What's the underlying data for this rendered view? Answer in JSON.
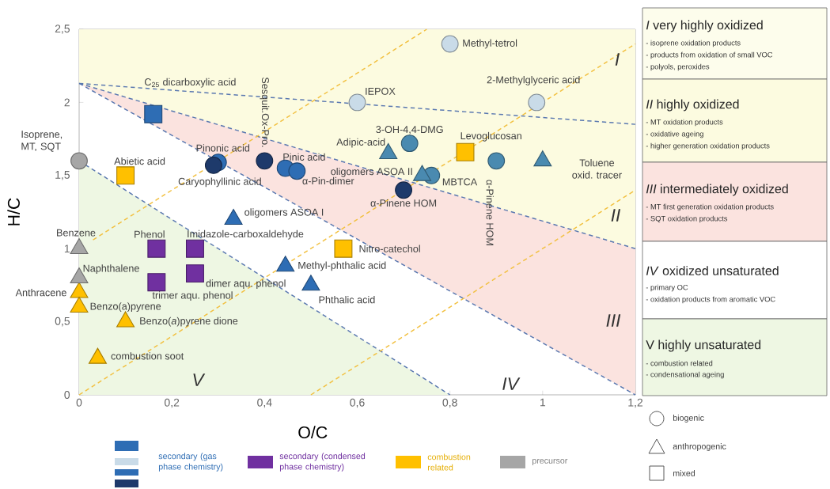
{
  "chart_data": [
    {
      "type": "scatter",
      "xlabel": "O/C",
      "ylabel": "H/C",
      "xlim": [
        0,
        1.2
      ],
      "ylim": [
        0,
        2.5
      ],
      "xticks": [
        0,
        {
          "value": 0.2,
          "label": "0,2"
        },
        {
          "value": 0.4,
          "label": "0,4"
        },
        {
          "value": 0.6,
          "label": "0,6"
        },
        {
          "value": 0.8,
          "label": "0,8"
        },
        1,
        {
          "value": 1.2,
          "label": "1,2"
        }
      ],
      "yticks": [
        0,
        {
          "value": 0.5,
          "label": "0,5"
        },
        1,
        {
          "value": 1.5,
          "label": "1,5"
        },
        2,
        {
          "value": 2.5,
          "label": "2,5"
        }
      ],
      "series": [
        {
          "type": "line",
          "line_style": "dashed",
          "color": "#5a78b0",
          "x": [
            0,
            1.2
          ],
          "values": [
            2.13,
            1.85
          ]
        },
        {
          "type": "line",
          "line_style": "dashed",
          "color": "#5a78b0",
          "x": [
            0,
            1.2
          ],
          "values": [
            2.13,
            1.0
          ]
        },
        {
          "type": "line",
          "line_style": "dashed",
          "color": "#5a78b0",
          "x": [
            0,
            1.2
          ],
          "values": [
            2.13,
            0
          ]
        },
        {
          "type": "line",
          "line_style": "dashed",
          "color": "#5a78b0",
          "x": [
            0,
            0.8
          ],
          "values": [
            1.6,
            0
          ]
        },
        {
          "type": "line",
          "line_style": "dashed",
          "color": "#f2c040",
          "x": [
            0,
            1.2
          ],
          "values": [
            0,
            2.4
          ]
        },
        {
          "type": "line",
          "line_style": "dashed",
          "color": "#f2c040",
          "x": [
            0.03,
            0.75
          ],
          "values": [
            1.06,
            2.5
          ]
        },
        {
          "type": "line",
          "line_style": "dashed",
          "color": "#f2c040",
          "x": [
            0.5,
            1.2
          ],
          "values": [
            0,
            1.4
          ]
        },
        {
          "type": "scatter",
          "marker": "circle",
          "color": "#c9dbe8",
          "x": [
            0.6,
            0.8,
            0.987
          ],
          "values": [
            2.0,
            2.4,
            2.0
          ]
        },
        {
          "type": "scatter",
          "marker": "circle",
          "color": "#4a8ab0",
          "x": [
            0.713,
            0.9,
            0.76
          ],
          "values": [
            1.72,
            1.6,
            1.5
          ]
        },
        {
          "type": "scatter",
          "marker": "triangle",
          "color": "#4a8ab0",
          "x": [
            0.667,
            1.0,
            0.74
          ],
          "values": [
            1.65,
            1.6,
            1.5
          ]
        },
        {
          "type": "scatter",
          "marker": "circle",
          "color": "#2e6db4",
          "x": [
            0.3,
            0.445,
            0.47
          ],
          "values": [
            1.59,
            1.55,
            1.53
          ]
        },
        {
          "type": "scatter",
          "marker": "square",
          "color": "#2e6db4",
          "x": [
            0.16
          ],
          "values": [
            1.92
          ]
        },
        {
          "type": "scatter",
          "marker": "triangle",
          "color": "#2e6db4",
          "x": [
            0.333,
            0.445,
            0.5
          ],
          "values": [
            1.2,
            0.88,
            0.75
          ]
        },
        {
          "type": "scatter",
          "marker": "circle",
          "color": "#1e3a6b",
          "x": [
            0.29,
            0.4,
            0.7
          ],
          "values": [
            1.57,
            1.6,
            1.4
          ]
        },
        {
          "type": "scatter",
          "marker": "square",
          "color": "#7030a0",
          "x": [
            0.167,
            0.25,
            0.167,
            0.25
          ],
          "values": [
            1.0,
            1.0,
            0.77,
            0.83
          ]
        },
        {
          "type": "scatter",
          "marker": "square",
          "color": "#ffc000",
          "x": [
            0.1,
            0.833,
            0.57
          ],
          "values": [
            1.5,
            1.66,
            1.0
          ]
        },
        {
          "type": "scatter",
          "marker": "triangle",
          "color": "#ffc000",
          "x": [
            0,
            0,
            0.1,
            0.04
          ],
          "values": [
            0.7,
            0.6,
            0.5,
            0.25
          ]
        },
        {
          "type": "scatter",
          "marker": "circle",
          "color": "#a6a6a6",
          "x": [
            0
          ],
          "values": [
            1.6
          ]
        },
        {
          "type": "scatter",
          "marker": "triangle",
          "color": "#a6a6a6",
          "x": [
            0,
            0
          ],
          "values": [
            1.0,
            0.8
          ]
        }
      ],
      "annotations": [
        {
          "text": "Isoprene, MT, SQT",
          "x": 0,
          "y": 1.6
        },
        {
          "text": "Abietic acid",
          "x": 0.1,
          "y": 1.5
        },
        {
          "text": "C$_{25}$ dicarboxylic acid",
          "x": 0.16,
          "y": 1.92
        },
        {
          "text": "Pinonic acid",
          "x": 0.3,
          "y": 1.59
        },
        {
          "text": "Caryophyllinic acid",
          "x": 0.29,
          "y": 1.57
        },
        {
          "text": "Sesquit.Ox-Pro.",
          "x": 0.4,
          "y": 1.6
        },
        {
          "text": "Pinic acid",
          "x": 0.445,
          "y": 1.55
        },
        {
          "text": "α-Pin-dimer",
          "x": 0.47,
          "y": 1.53
        },
        {
          "text": "IEPOX",
          "x": 0.6,
          "y": 2.0
        },
        {
          "text": "Methyl-tetrol",
          "x": 0.8,
          "y": 2.4
        },
        {
          "text": "2-Methylglyceric acid",
          "x": 0.987,
          "y": 2.0
        },
        {
          "text": "3-OH-4,4-DMG",
          "x": 0.713,
          "y": 1.72
        },
        {
          "text": "Adipic-acid",
          "x": 0.667,
          "y": 1.65
        },
        {
          "text": "Levoglucosan",
          "x": 0.833,
          "y": 1.66
        },
        {
          "text": "Toluene oxid. tracer",
          "x": 1.0,
          "y": 1.6
        },
        {
          "text": "oligomers ASOA II",
          "x": 0.74,
          "y": 1.5
        },
        {
          "text": "MBTCA",
          "x": 0.76,
          "y": 1.5
        },
        {
          "text": "α-Pinene HOM",
          "x": 0.7,
          "y": 1.4
        },
        {
          "text": "α-Pinene HOM",
          "x": 0.9,
          "y": 1.6
        },
        {
          "text": "oligomers ASOA I",
          "x": 0.333,
          "y": 1.2
        },
        {
          "text": "Imidazole-carboxaldehyde",
          "x": 0.25,
          "y": 1.0
        },
        {
          "text": "Phenol",
          "x": 0.167,
          "y": 1.0
        },
        {
          "text": "trimer aqu. phenol",
          "x": 0.167,
          "y": 0.77
        },
        {
          "text": "dimer aqu. phenol",
          "x": 0.25,
          "y": 0.83
        },
        {
          "text": "Nitro-catechol",
          "x": 0.57,
          "y": 1.0
        },
        {
          "text": "Methyl-phthalic acid",
          "x": 0.445,
          "y": 0.88
        },
        {
          "text": "Phthalic acid",
          "x": 0.5,
          "y": 0.75
        },
        {
          "text": "Benzene",
          "x": 0,
          "y": 1.0
        },
        {
          "text": "Naphthalene",
          "x": 0,
          "y": 0.8
        },
        {
          "text": "Anthracene",
          "x": 0,
          "y": 0.7
        },
        {
          "text": "Benzo(a)pyrene",
          "x": 0,
          "y": 0.6
        },
        {
          "text": "Benzo(*a*)pyrene dione",
          "x": 0.1,
          "y": 0.5
        },
        {
          "text": "combustion soot",
          "x": 0.04,
          "y": 0.25
        },
        "I",
        "II",
        "III",
        "IV",
        "V",
        "secondary (gas phase chemistry)",
        "secondary (condensed phase chemistry)",
        "combustion related",
        "precursor",
        "biogenic",
        "anthropogenic",
        "mixed"
      ]
    },
    {
      "type": "other",
      "annotations": [
        "*I* very highly oxidized",
        "- isoprene oxidation products",
        "- products from oxidation of small VOC",
        "- polyols, peroxides",
        "*II* highly oxidized",
        "- MT oxidation products",
        "- oxidative ageing",
        "- higher generation oxidation products",
        "*III* intermediately oxidized",
        "- MT first generation oxidation products",
        "- SQT oxidation products",
        "*IV* oxidized unsaturated",
        "- primary OC",
        "- oxidation products from aromatic VOC",
        "V highly unsaturated",
        "- combustion related",
        "- condensational ageing"
      ]
    }
  ]
}
